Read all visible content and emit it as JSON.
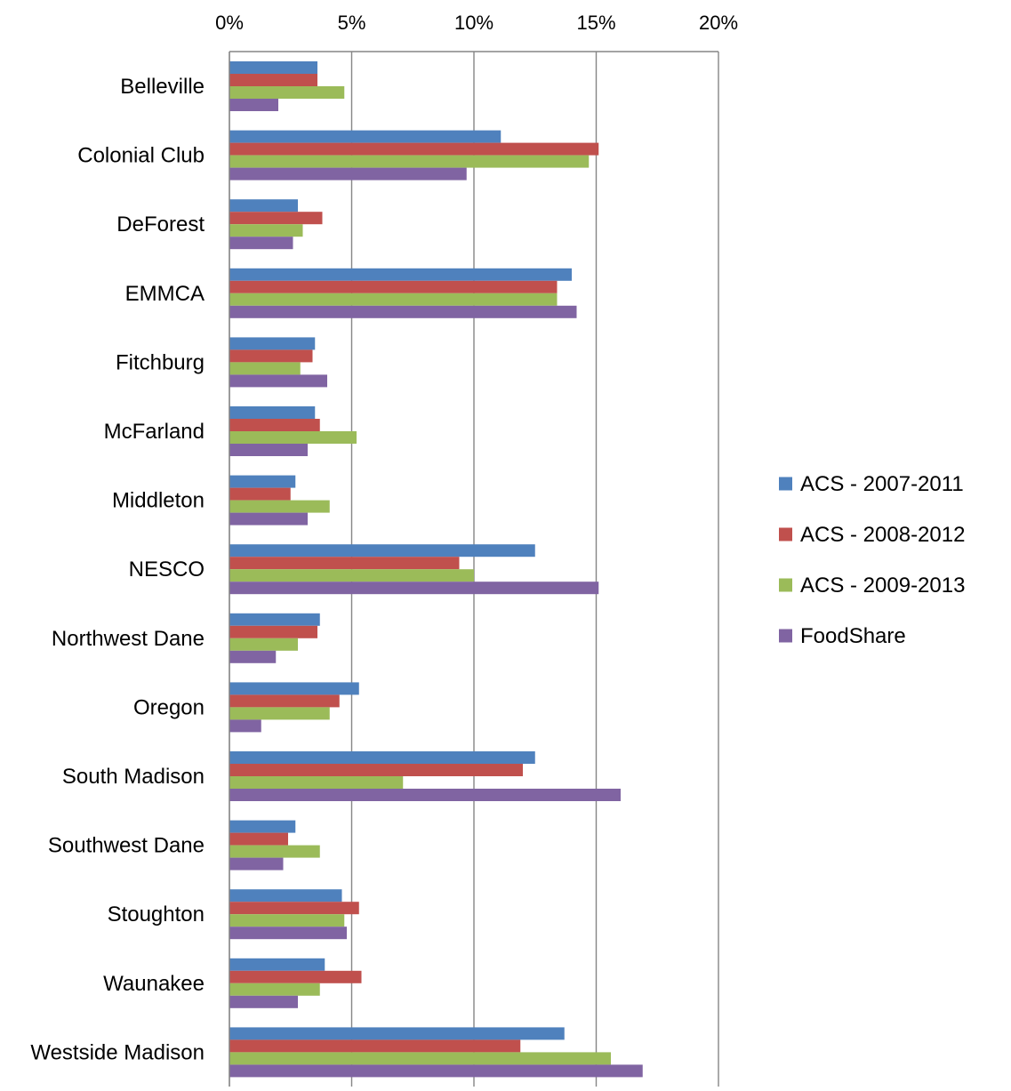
{
  "chart_data": {
    "type": "bar",
    "orientation": "horizontal",
    "x_axis_position": "top",
    "xlim": [
      0,
      0.2
    ],
    "x_ticks": [
      0,
      0.05,
      0.1,
      0.15,
      0.2
    ],
    "x_tick_labels": [
      "0%",
      "5%",
      "10%",
      "15%",
      "20%"
    ],
    "grid": "vertical",
    "legend_position": "right",
    "title": "",
    "xlabel": "",
    "ylabel": "",
    "categories": [
      "Belleville",
      "Colonial Club",
      "DeForest",
      "EMMCA",
      "Fitchburg",
      "McFarland",
      "Middleton",
      "NESCO",
      "Northwest Dane",
      "Oregon",
      "South Madison",
      "Southwest Dane",
      "Stoughton",
      "Waunakee",
      "Westside Madison"
    ],
    "series": [
      {
        "name": "ACS - 2007-2011",
        "color": "#4F81BD",
        "values": [
          0.036,
          0.111,
          0.028,
          0.14,
          0.035,
          0.035,
          0.027,
          0.125,
          0.037,
          0.053,
          0.125,
          0.027,
          0.046,
          0.039,
          0.137
        ]
      },
      {
        "name": "ACS - 2008-2012",
        "color": "#C0504D",
        "values": [
          0.036,
          0.151,
          0.038,
          0.134,
          0.034,
          0.037,
          0.025,
          0.094,
          0.036,
          0.045,
          0.12,
          0.024,
          0.053,
          0.054,
          0.119
        ]
      },
      {
        "name": "ACS - 2009-2013",
        "color": "#9BBB59",
        "values": [
          0.047,
          0.147,
          0.03,
          0.134,
          0.029,
          0.052,
          0.041,
          0.1,
          0.028,
          0.041,
          0.071,
          0.037,
          0.047,
          0.037,
          0.156
        ]
      },
      {
        "name": "FoodShare",
        "color": "#8064A2",
        "values": [
          0.02,
          0.097,
          0.026,
          0.142,
          0.04,
          0.032,
          0.032,
          0.151,
          0.019,
          0.013,
          0.16,
          0.022,
          0.048,
          0.028,
          0.169
        ]
      }
    ]
  }
}
